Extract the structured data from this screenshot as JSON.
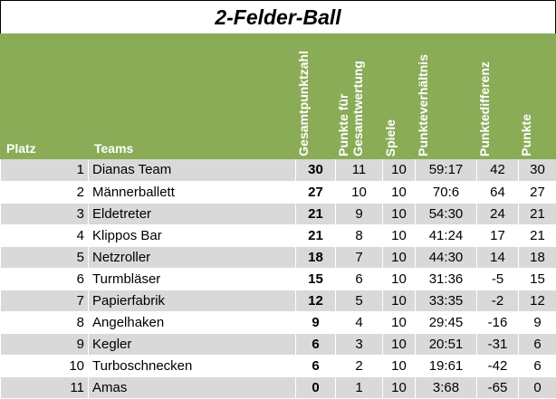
{
  "title": "2-Felder-Ball",
  "columns": {
    "platz": "Platz",
    "teams": "Teams",
    "gesamtpunktzahl": "Gesamtpunktzahl",
    "punkte_fuer_gesamtwertung_1": "Punkte für",
    "punkte_fuer_gesamtwertung_2": "Gesamtwertung",
    "spiele": "Spiele",
    "punkteverhaeltnis": "Punkteverhältnis",
    "punktedifferenz": "Punktedifferenz",
    "punkte": "Punkte"
  },
  "rows": [
    {
      "platz": "1",
      "team": "Dianas Team",
      "gesamt": "30",
      "gw": "11",
      "spiele": "10",
      "verh": "59:17",
      "diff": "42",
      "punkte": "30"
    },
    {
      "platz": "2",
      "team": "Männerballett",
      "gesamt": "27",
      "gw": "10",
      "spiele": "10",
      "verh": "70:6",
      "diff": "64",
      "punkte": "27"
    },
    {
      "platz": "3",
      "team": "Eldetreter",
      "gesamt": "21",
      "gw": "9",
      "spiele": "10",
      "verh": "54:30",
      "diff": "24",
      "punkte": "21"
    },
    {
      "platz": "4",
      "team": "Klippos Bar",
      "gesamt": "21",
      "gw": "8",
      "spiele": "10",
      "verh": "41:24",
      "diff": "17",
      "punkte": "21"
    },
    {
      "platz": "5",
      "team": "Netzroller",
      "gesamt": "18",
      "gw": "7",
      "spiele": "10",
      "verh": "44:30",
      "diff": "14",
      "punkte": "18"
    },
    {
      "platz": "6",
      "team": "Turmbläser",
      "gesamt": "15",
      "gw": "6",
      "spiele": "10",
      "verh": "31:36",
      "diff": "-5",
      "punkte": "15"
    },
    {
      "platz": "7",
      "team": "Papierfabrik",
      "gesamt": "12",
      "gw": "5",
      "spiele": "10",
      "verh": "33:35",
      "diff": "-2",
      "punkte": "12"
    },
    {
      "platz": "8",
      "team": "Angelhaken",
      "gesamt": "9",
      "gw": "4",
      "spiele": "10",
      "verh": "29:45",
      "diff": "-16",
      "punkte": "9"
    },
    {
      "platz": "9",
      "team": "Kegler",
      "gesamt": "6",
      "gw": "3",
      "spiele": "10",
      "verh": "20:51",
      "diff": "-31",
      "punkte": "6"
    },
    {
      "platz": "10",
      "team": "Turboschnecken",
      "gesamt": "6",
      "gw": "2",
      "spiele": "10",
      "verh": "19:61",
      "diff": "-42",
      "punkte": "6"
    },
    {
      "platz": "11",
      "team": "Amas",
      "gesamt": "0",
      "gw": "1",
      "spiele": "10",
      "verh": "3:68",
      "diff": "-65",
      "punkte": "0"
    }
  ],
  "colors": {
    "header_green": "#8aac57",
    "header_text": "#ffffff",
    "row_shade": "#d9d9d9",
    "row_plain": "#ffffff"
  }
}
